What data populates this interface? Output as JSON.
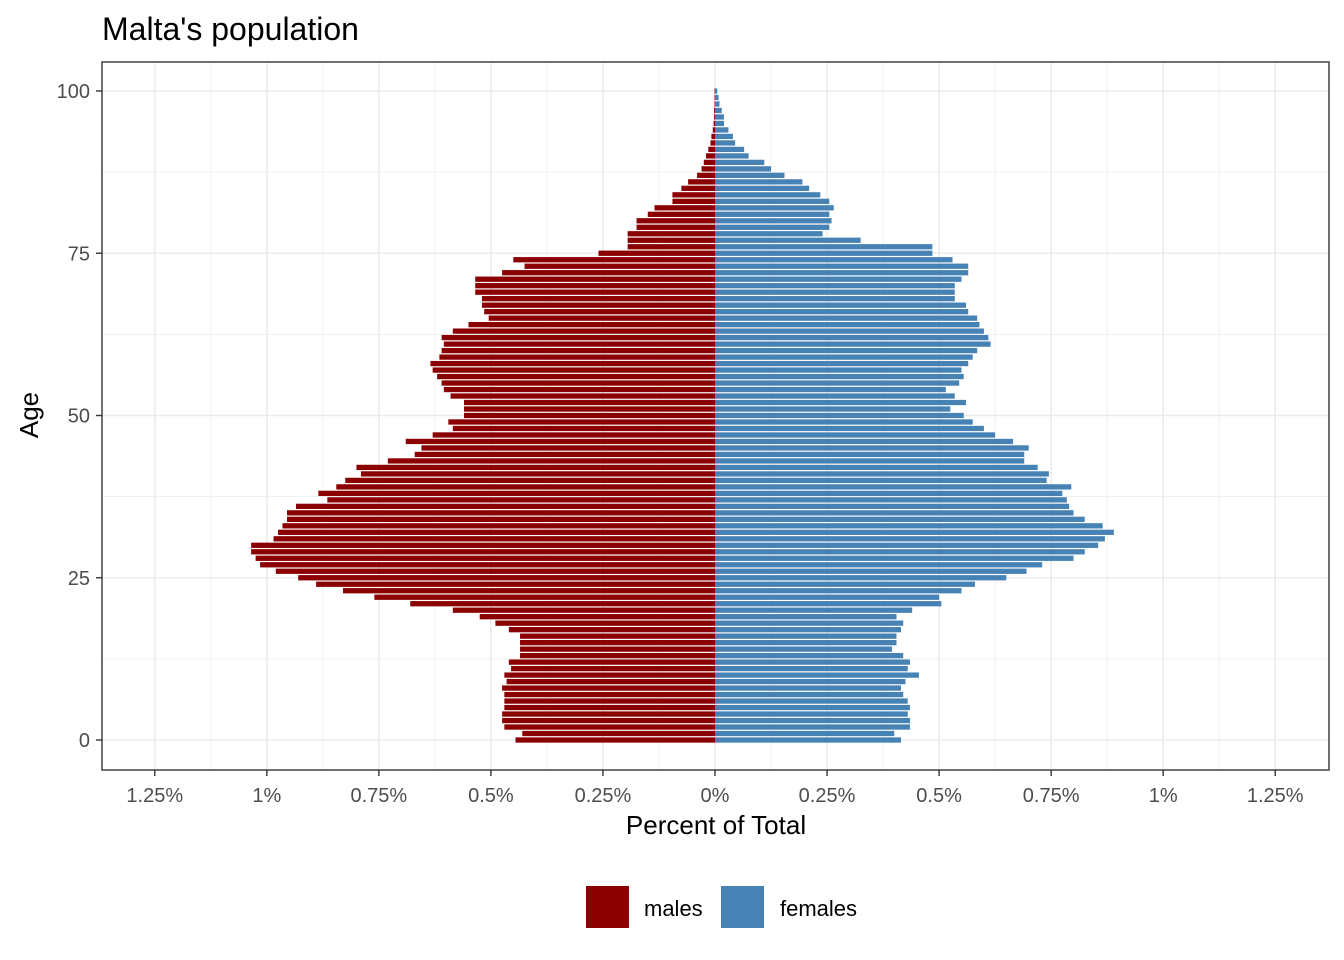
{
  "chart_data": {
    "type": "bar",
    "orientation": "horizontal",
    "title": "Malta's population",
    "xlabel": "Percent of Total",
    "ylabel": "Age",
    "xlim": [
      -1.37,
      1.37
    ],
    "ylim": [
      -4,
      100.5
    ],
    "x_ticks": [
      -1.25,
      -1,
      -0.75,
      -0.5,
      -0.25,
      0,
      0.25,
      0.5,
      0.75,
      1,
      1.25
    ],
    "x_tick_labels": [
      "1.25%",
      "1%",
      "0.75%",
      "0.5%",
      "0.25%",
      "0%",
      "0.25%",
      "0.5%",
      "0.75%",
      "1%",
      "1.25%"
    ],
    "y_ticks": [
      0,
      25,
      50,
      75,
      100
    ],
    "y_tick_labels": [
      "0",
      "25",
      "50",
      "75",
      "100"
    ],
    "grid": true,
    "legend_position": "bottom",
    "ages": [
      0,
      1,
      2,
      3,
      4,
      5,
      6,
      7,
      8,
      9,
      10,
      11,
      12,
      13,
      14,
      15,
      16,
      17,
      18,
      19,
      20,
      21,
      22,
      23,
      24,
      25,
      26,
      27,
      28,
      29,
      30,
      31,
      32,
      33,
      34,
      35,
      36,
      37,
      38,
      39,
      40,
      41,
      42,
      43,
      44,
      45,
      46,
      47,
      48,
      49,
      50,
      51,
      52,
      53,
      54,
      55,
      56,
      57,
      58,
      59,
      60,
      61,
      62,
      63,
      64,
      65,
      66,
      67,
      68,
      69,
      70,
      71,
      72,
      73,
      74,
      75,
      76,
      77,
      78,
      79,
      80,
      81,
      82,
      83,
      84,
      85,
      86,
      87,
      88,
      89,
      90,
      91,
      92,
      93,
      94,
      95,
      96,
      97,
      98,
      99,
      100
    ],
    "series": [
      {
        "name": "males",
        "color": "#8B0000",
        "values": [
          0.445,
          0.43,
          0.47,
          0.475,
          0.475,
          0.47,
          0.47,
          0.47,
          0.475,
          0.465,
          0.47,
          0.455,
          0.46,
          0.435,
          0.435,
          0.435,
          0.435,
          0.46,
          0.49,
          0.525,
          0.585,
          0.68,
          0.76,
          0.83,
          0.89,
          0.93,
          0.98,
          1.015,
          1.025,
          1.035,
          1.035,
          0.985,
          0.975,
          0.965,
          0.955,
          0.955,
          0.935,
          0.865,
          0.885,
          0.845,
          0.825,
          0.79,
          0.8,
          0.73,
          0.67,
          0.655,
          0.69,
          0.63,
          0.585,
          0.595,
          0.56,
          0.56,
          0.56,
          0.59,
          0.605,
          0.61,
          0.62,
          0.63,
          0.635,
          0.615,
          0.61,
          0.605,
          0.61,
          0.585,
          0.55,
          0.505,
          0.515,
          0.52,
          0.52,
          0.535,
          0.535,
          0.535,
          0.475,
          0.425,
          0.45,
          0.26,
          0.195,
          0.195,
          0.195,
          0.175,
          0.175,
          0.15,
          0.135,
          0.095,
          0.095,
          0.075,
          0.06,
          0.04,
          0.03,
          0.025,
          0.02,
          0.015,
          0.01,
          0.008,
          0.005,
          0.003,
          0.002,
          0.002,
          0.001,
          0.001,
          0.001
        ]
      },
      {
        "name": "females",
        "color": "#4682B4",
        "values": [
          0.415,
          0.4,
          0.435,
          0.435,
          0.43,
          0.435,
          0.43,
          0.42,
          0.415,
          0.425,
          0.455,
          0.43,
          0.435,
          0.42,
          0.395,
          0.405,
          0.405,
          0.415,
          0.42,
          0.405,
          0.44,
          0.505,
          0.5,
          0.55,
          0.58,
          0.65,
          0.695,
          0.73,
          0.8,
          0.825,
          0.855,
          0.87,
          0.89,
          0.865,
          0.825,
          0.8,
          0.79,
          0.785,
          0.775,
          0.795,
          0.74,
          0.745,
          0.72,
          0.69,
          0.69,
          0.7,
          0.665,
          0.625,
          0.6,
          0.575,
          0.555,
          0.525,
          0.56,
          0.535,
          0.515,
          0.545,
          0.555,
          0.55,
          0.565,
          0.575,
          0.585,
          0.615,
          0.61,
          0.6,
          0.59,
          0.585,
          0.565,
          0.56,
          0.535,
          0.535,
          0.535,
          0.55,
          0.565,
          0.565,
          0.53,
          0.485,
          0.485,
          0.325,
          0.24,
          0.255,
          0.26,
          0.255,
          0.265,
          0.255,
          0.235,
          0.21,
          0.195,
          0.155,
          0.125,
          0.11,
          0.075,
          0.065,
          0.045,
          0.04,
          0.03,
          0.02,
          0.02,
          0.015,
          0.01,
          0.008,
          0.005
        ]
      }
    ]
  }
}
